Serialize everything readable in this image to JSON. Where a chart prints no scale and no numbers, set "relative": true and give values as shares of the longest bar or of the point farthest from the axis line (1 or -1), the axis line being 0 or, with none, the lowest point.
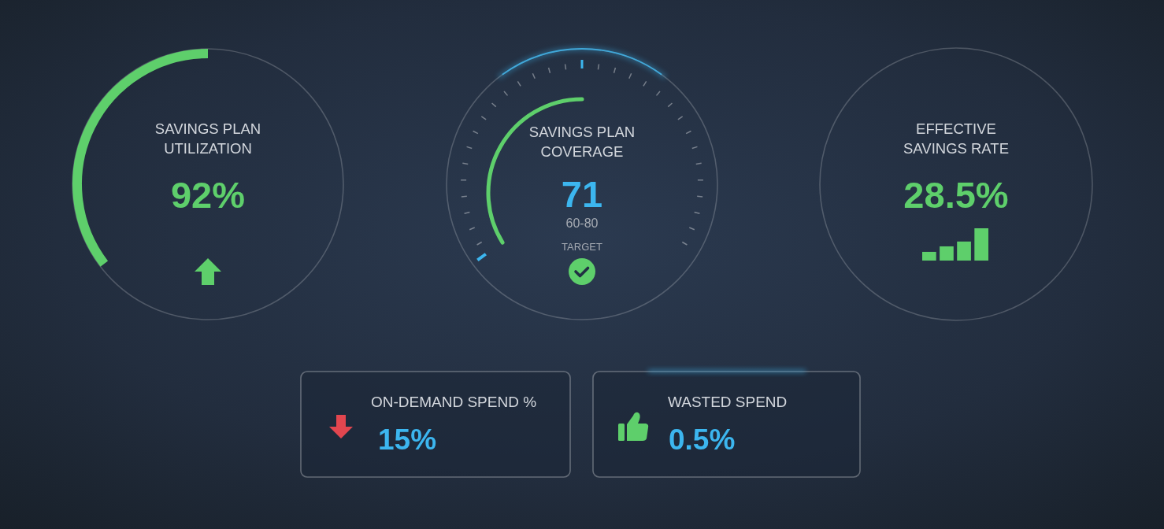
{
  "chart_data": [
    {
      "type": "other",
      "title": "SAVINGS PLAN UTILIZATION",
      "annotations": [
        "92%"
      ]
    },
    {
      "type": "other",
      "title": "SAVINGS PLAN COVERAGE",
      "annotations": [
        "71",
        "60-80",
        "TARGET"
      ]
    },
    {
      "type": "other",
      "title": "EFFECTIVE SAVINGS RATE",
      "annotations": [
        "28.5%"
      ]
    },
    {
      "type": "bar",
      "relative": true,
      "categories": [
        null,
        null,
        null,
        null
      ],
      "values": [
        0.27,
        0.44,
        0.59,
        1
      ],
      "color": "#5ecf6b"
    },
    {
      "type": "other",
      "title": "ON-DEMAND SPEND %",
      "annotations": [
        "15%"
      ]
    },
    {
      "type": "other",
      "title": "WASTED SPEND",
      "annotations": [
        "0.5%"
      ]
    }
  ]
}
